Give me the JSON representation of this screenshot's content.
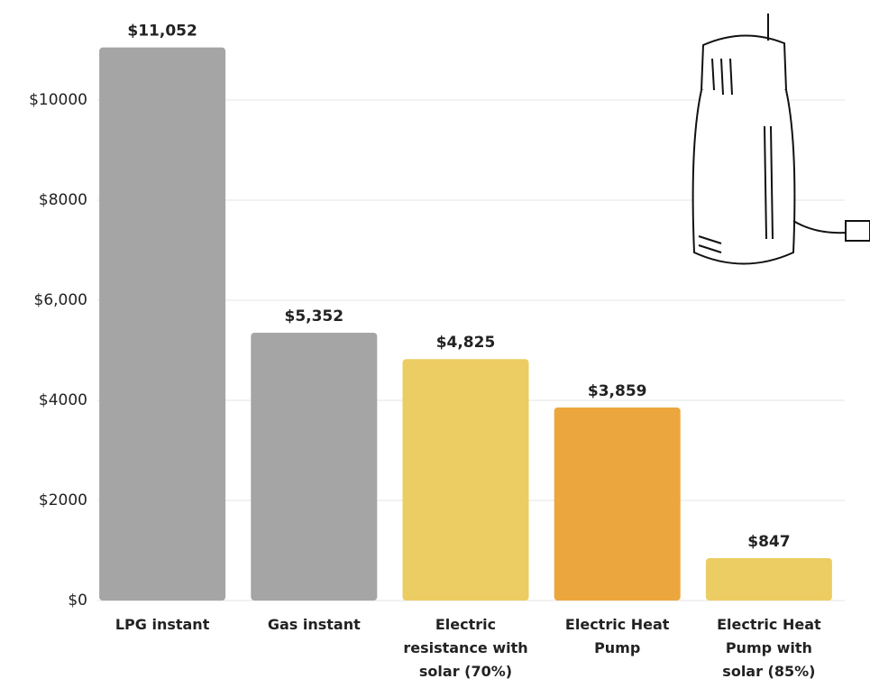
{
  "chart_data": {
    "type": "bar",
    "categories": [
      "LPG instant",
      "Gas instant",
      "Electric resistance with solar (70%)",
      "Electric Heat Pump",
      "Electric Heat Pump with solar (85%)"
    ],
    "values": [
      11052,
      5352,
      4825,
      3859,
      847
    ],
    "value_labels": [
      "$11,052",
      "$5,352",
      "$4,825",
      "$3,859",
      "$847"
    ],
    "colors": [
      "#a5a5a5",
      "#a5a5a5",
      "#eccd63",
      "#eca63e",
      "#eccd63"
    ],
    "ylim": [
      0,
      12000
    ],
    "yticks": [
      {
        "value": 0,
        "label": "$0"
      },
      {
        "value": 2000,
        "label": "$2000"
      },
      {
        "value": 4000,
        "label": "$4000"
      },
      {
        "value": 6000,
        "label": "$6,000"
      },
      {
        "value": 8000,
        "label": "$8000"
      },
      {
        "value": 10000,
        "label": "$10000"
      }
    ],
    "grid": true
  }
}
